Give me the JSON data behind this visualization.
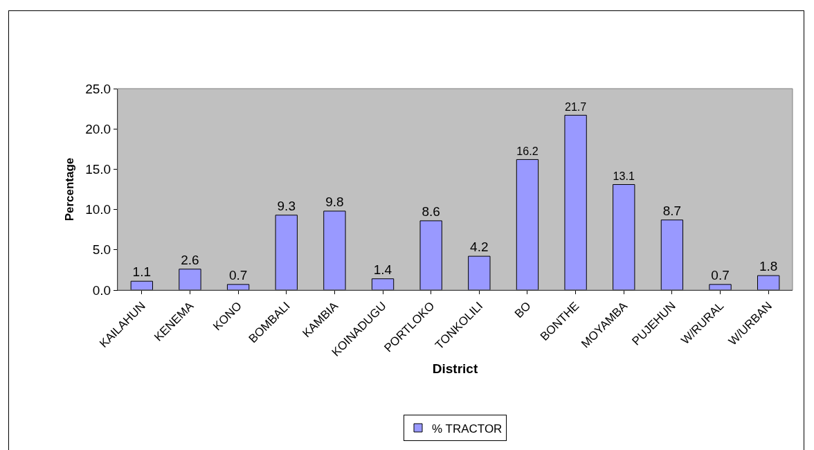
{
  "chart_data": {
    "type": "bar",
    "xlabel": "District",
    "ylabel": "Percentage",
    "categories": [
      "KAILAHUN",
      "KENEMA",
      "KONO",
      "BOMBALI",
      "KAMBIA",
      "KOINADUGU",
      "PORTLOKO",
      "TONKOLILI",
      "BO",
      "BONTHE",
      "MOYAMBA",
      "PUJEHUN",
      "W/RURAL",
      "W/URBAN"
    ],
    "series": [
      {
        "name": "% TRACTOR",
        "color": "#9999ff",
        "values": [
          1.1,
          2.6,
          0.7,
          9.3,
          9.8,
          1.4,
          8.6,
          4.2,
          16.2,
          21.7,
          13.1,
          8.7,
          0.7,
          1.8
        ]
      }
    ],
    "ylim": [
      0,
      25
    ],
    "yticks": [
      {
        "value": 0,
        "label": "0.0"
      },
      {
        "value": 5,
        "label": "5.0"
      },
      {
        "value": 10,
        "label": "10.0"
      },
      {
        "value": 15,
        "label": "15.0"
      },
      {
        "value": 20,
        "label": "20.0"
      },
      {
        "value": 25,
        "label": "25.0"
      }
    ],
    "data_labels": true,
    "grid": false,
    "legend": "bottom"
  }
}
